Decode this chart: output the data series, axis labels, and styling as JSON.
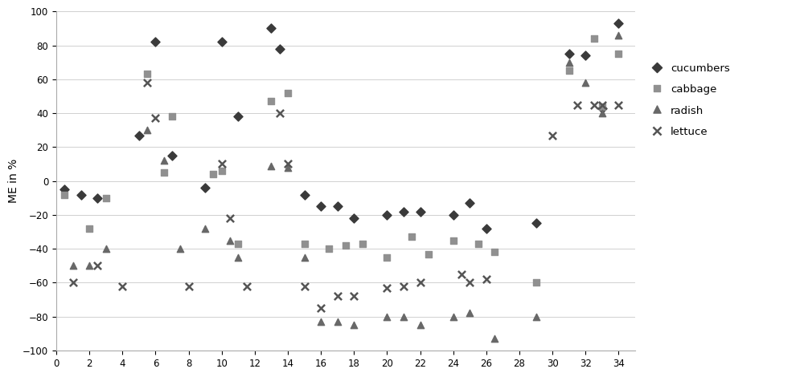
{
  "cucumbers_x": [
    0.5,
    1.5,
    2.5,
    5,
    6,
    7,
    9,
    10,
    11,
    13,
    13.5,
    15,
    16,
    17,
    18,
    20,
    21,
    22,
    24,
    25,
    26,
    29,
    31,
    32,
    33,
    34
  ],
  "cucumbers_y": [
    -5,
    -8,
    -10,
    27,
    82,
    15,
    -4,
    82,
    38,
    90,
    78,
    -8,
    -15,
    -15,
    -22,
    -20,
    -18,
    -18,
    -20,
    -13,
    -28,
    -25,
    75,
    74,
    43,
    93
  ],
  "cabbage_x": [
    0.5,
    2,
    3,
    5.5,
    6.5,
    7,
    9.5,
    10,
    11,
    13,
    14,
    15,
    16.5,
    17.5,
    18.5,
    20,
    21.5,
    22.5,
    24,
    25.5,
    26.5,
    29,
    31,
    32.5,
    33,
    34
  ],
  "cabbage_y": [
    -8,
    -28,
    -10,
    63,
    5,
    38,
    4,
    6,
    -37,
    47,
    52,
    -37,
    -40,
    -38,
    -37,
    -45,
    -33,
    -43,
    -35,
    -37,
    -42,
    -60,
    65,
    84,
    44,
    75
  ],
  "radish_x": [
    1,
    2,
    3,
    5.5,
    6.5,
    7.5,
    9,
    10.5,
    11,
    13,
    14,
    15,
    16,
    17,
    18,
    20,
    21,
    22,
    24,
    25,
    26.5,
    29,
    31,
    32,
    33,
    34
  ],
  "radish_y": [
    -50,
    -50,
    -40,
    30,
    12,
    -40,
    -28,
    -35,
    -45,
    9,
    8,
    -45,
    -83,
    -83,
    -85,
    -80,
    -80,
    -85,
    -80,
    -78,
    -93,
    -80,
    70,
    58,
    40,
    86
  ],
  "lettuce_x": [
    1,
    2.5,
    4,
    5.5,
    6,
    8,
    10,
    10.5,
    11.5,
    13.5,
    14,
    15,
    16,
    17,
    18,
    20,
    21,
    22,
    24.5,
    25,
    26,
    30,
    31.5,
    32.5,
    33,
    34
  ],
  "lettuce_y": [
    -60,
    -50,
    -62,
    58,
    37,
    -62,
    10,
    -22,
    -62,
    40,
    10,
    -62,
    -75,
    -68,
    -68,
    -63,
    -62,
    -60,
    -55,
    -60,
    -58,
    27,
    45,
    45,
    45,
    45
  ],
  "color_cucumbers": "#3a3a3a",
  "color_cabbage": "#909090",
  "color_radish": "#686868",
  "color_lettuce": "#555555",
  "ylabel": "ME in %",
  "ylim": [
    -100,
    100
  ],
  "xlim": [
    0,
    35
  ],
  "xticks": [
    0,
    2,
    4,
    6,
    8,
    10,
    12,
    14,
    16,
    18,
    20,
    22,
    24,
    26,
    28,
    30,
    32,
    34
  ],
  "yticks": [
    -100,
    -80,
    -60,
    -40,
    -20,
    0,
    20,
    40,
    60,
    80,
    100
  ],
  "background_color": "#ffffff",
  "grid_color": "#d0d0d0",
  "legend_labels": [
    "cucumbers",
    "cabbage",
    "radish",
    "lettuce"
  ]
}
